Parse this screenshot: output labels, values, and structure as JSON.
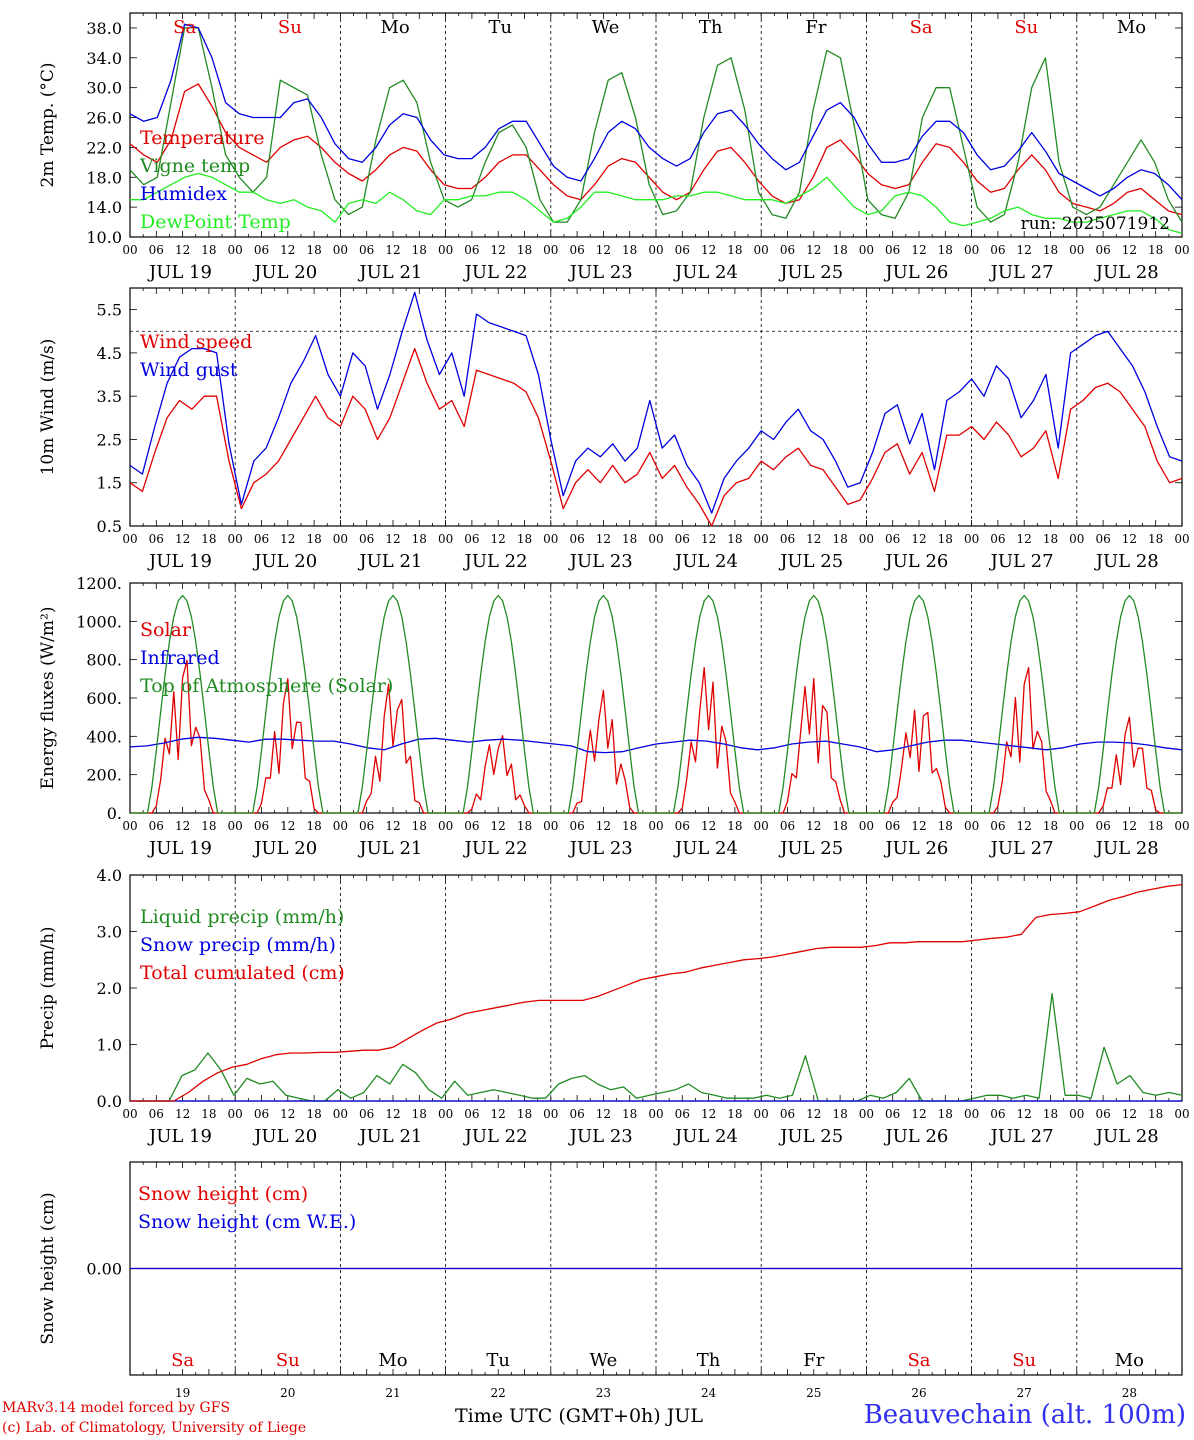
{
  "colors": {
    "red": "#e00000",
    "blue": "#0000e0",
    "green": "#228b22",
    "lime": "#22ee22",
    "black": "#000000",
    "grid": "#000000"
  },
  "x_axis": {
    "hour_labels": [
      "00",
      "06",
      "12",
      "18"
    ],
    "end_hour_label": "00",
    "date_labels": [
      "JUL 19",
      "JUL 20",
      "JUL 21",
      "JUL 22",
      "JUL 23",
      "JUL 24",
      "JUL 25",
      "JUL 26",
      "JUL 27",
      "JUL 28"
    ],
    "day_names": [
      "Sa",
      "Su",
      "Mo",
      "Tu",
      "We",
      "Th",
      "Fr",
      "Sa",
      "Su",
      "Mo"
    ],
    "weekend_flags": [
      true,
      true,
      false,
      false,
      false,
      false,
      false,
      true,
      true,
      false
    ],
    "day_numbers": [
      "19",
      "20",
      "21",
      "22",
      "23",
      "24",
      "25",
      "26",
      "27",
      "28"
    ],
    "title": "Time UTC (GMT+0h) JUL"
  },
  "footer": {
    "credit_line1": "MARv3.14 model forced by GFS",
    "credit_line2": "(c) Lab. of Climatology, University of Liege",
    "station": "Beauvechain (alt. 100m)"
  },
  "chart_data": [
    {
      "type": "line",
      "ylabel": "2m Temp. (°C)",
      "ylim": [
        10,
        40
      ],
      "yticks": [
        "10.0",
        "14.0",
        "18.0",
        "22.0",
        "26.0",
        "30.0",
        "34.0",
        "38.0"
      ],
      "annotation": "run: 2025071912",
      "x": "hours since JUL 19 00 UTC, 3-hourly, 0-240",
      "series": [
        {
          "name": "Temperature",
          "color": "red",
          "values": [
            22.5,
            21,
            20,
            23,
            29.5,
            30.5,
            27.5,
            24,
            22,
            21,
            20,
            22,
            23,
            23.5,
            22,
            20,
            18.5,
            17.5,
            19,
            21,
            22,
            21.5,
            19,
            17,
            16.5,
            16.5,
            18,
            20,
            21,
            21,
            19,
            17,
            15.5,
            15,
            17,
            19.5,
            20.5,
            20,
            18,
            16,
            15,
            16,
            19,
            21.5,
            22,
            20,
            17.5,
            15.5,
            14.5,
            15,
            18,
            22,
            23,
            21,
            18.5,
            17,
            16.5,
            17,
            20,
            22.5,
            22,
            20,
            17.5,
            16,
            16.5,
            19,
            21,
            19,
            16,
            14.5,
            14,
            13.5,
            14.5,
            16,
            16.5,
            15,
            13.5,
            13
          ]
        },
        {
          "name": "Vigne temp",
          "color": "green",
          "values": [
            19,
            17,
            18,
            28,
            38,
            38,
            30,
            21,
            18,
            16,
            18,
            31,
            30,
            29,
            21,
            15,
            13,
            14,
            23,
            30,
            31,
            28,
            20,
            15,
            14,
            15,
            20,
            24,
            25,
            22,
            15,
            12,
            12,
            15,
            24,
            31,
            32,
            26,
            17,
            13,
            13.5,
            16,
            26,
            33,
            34,
            27,
            16,
            13,
            12.5,
            16,
            27,
            35,
            34,
            25,
            15,
            13,
            12.5,
            16,
            26,
            30,
            30,
            22,
            14,
            12,
            13,
            20,
            30,
            34,
            20,
            14,
            13,
            14,
            17,
            20,
            23,
            20,
            15,
            12
          ]
        },
        {
          "name": "Humidex",
          "color": "blue",
          "values": [
            26.5,
            25.5,
            26,
            31,
            38.5,
            38,
            34,
            28,
            26.5,
            26,
            26,
            26,
            28,
            28.5,
            26,
            22.5,
            20.5,
            20,
            22,
            25,
            26.5,
            26,
            23,
            21,
            20.5,
            20.5,
            22,
            24.5,
            25.5,
            25.5,
            22.5,
            19.5,
            18,
            17.5,
            20.5,
            24,
            25.5,
            24.5,
            22,
            20.5,
            19.5,
            20.5,
            24,
            26.5,
            27,
            25,
            22.5,
            20.5,
            19,
            20,
            23.5,
            27,
            28,
            26,
            22.5,
            20,
            20,
            20.5,
            23.5,
            25.5,
            25.5,
            24,
            21,
            19,
            19.5,
            21.5,
            24,
            21.5,
            18.5,
            17.5,
            16.5,
            15.5,
            16.5,
            18,
            19,
            18.5,
            17,
            15
          ]
        },
        {
          "name": "DewPoint Temp",
          "color": "lime",
          "values": [
            15,
            15,
            16,
            17,
            18,
            18.5,
            18,
            17,
            16,
            16,
            15,
            14.5,
            15,
            14,
            13.5,
            12,
            14.5,
            15,
            14.5,
            16,
            15,
            13.5,
            13,
            15,
            15,
            15.5,
            15.5,
            16,
            16,
            15,
            13.5,
            12,
            12.5,
            14,
            16,
            16,
            15.5,
            15,
            15,
            15,
            15.5,
            15.5,
            16,
            16,
            15.5,
            15,
            15,
            15,
            14.5,
            15.5,
            16.5,
            18,
            16,
            14,
            13,
            13.5,
            15.5,
            16,
            15.5,
            14,
            12,
            11.5,
            12,
            12.5,
            13.5,
            14,
            13,
            12.5,
            12.5,
            12,
            12,
            12.5,
            13,
            13.5,
            13.5,
            12.5,
            11,
            10.5
          ]
        }
      ]
    },
    {
      "type": "line",
      "ylabel": "10m Wind (m/s)",
      "ylim": [
        0.5,
        6
      ],
      "yticks": [
        "0.5",
        "1.5",
        "2.5",
        "3.5",
        "4.5",
        "5.5"
      ],
      "reference_line": 5.0,
      "series": [
        {
          "name": "Wind speed",
          "color": "red",
          "values": [
            1.5,
            1.3,
            2.2,
            3.0,
            3.4,
            3.2,
            3.5,
            3.5,
            2.0,
            0.9,
            1.5,
            1.7,
            2.0,
            2.5,
            3.0,
            3.5,
            3.0,
            2.8,
            3.5,
            3.2,
            2.5,
            3.0,
            3.8,
            4.6,
            3.8,
            3.2,
            3.4,
            2.8,
            4.1,
            4.0,
            3.9,
            3.8,
            3.6,
            3.0,
            2.0,
            0.9,
            1.5,
            1.8,
            1.5,
            1.9,
            1.5,
            1.7,
            2.2,
            1.6,
            1.9,
            1.4,
            1.0,
            0.5,
            1.2,
            1.5,
            1.6,
            2.0,
            1.8,
            2.1,
            2.3,
            1.9,
            1.8,
            1.4,
            1.0,
            1.1,
            1.6,
            2.2,
            2.4,
            1.7,
            2.2,
            1.3,
            2.6,
            2.6,
            2.8,
            2.5,
            2.9,
            2.6,
            2.1,
            2.3,
            2.7,
            1.6,
            3.2,
            3.4,
            3.7,
            3.8,
            3.6,
            3.2,
            2.8,
            2.0,
            1.5,
            1.6
          ]
        },
        {
          "name": "Wind gust",
          "color": "blue",
          "values": [
            1.9,
            1.7,
            2.8,
            3.8,
            4.4,
            4.6,
            4.6,
            4.5,
            2.4,
            1.0,
            2.0,
            2.3,
            3.0,
            3.8,
            4.3,
            4.9,
            4.0,
            3.5,
            4.5,
            4.2,
            3.2,
            4.0,
            5.0,
            5.9,
            4.8,
            4.0,
            4.5,
            3.5,
            5.4,
            5.2,
            5.1,
            5.0,
            4.9,
            4.0,
            2.5,
            1.2,
            2.0,
            2.3,
            2.1,
            2.4,
            2.0,
            2.3,
            3.4,
            2.3,
            2.6,
            1.9,
            1.5,
            0.8,
            1.6,
            2.0,
            2.3,
            2.7,
            2.5,
            2.9,
            3.2,
            2.7,
            2.5,
            2.0,
            1.4,
            1.5,
            2.2,
            3.1,
            3.3,
            2.4,
            3.1,
            1.8,
            3.4,
            3.6,
            3.9,
            3.5,
            4.2,
            3.9,
            3.0,
            3.4,
            4.0,
            2.3,
            4.5,
            4.7,
            4.9,
            5.0,
            4.6,
            4.2,
            3.6,
            2.8,
            2.1,
            2.0
          ]
        }
      ]
    },
    {
      "type": "line",
      "ylabel": "Energy fluxes (W/m²)",
      "ylim": [
        0,
        1200
      ],
      "yticks": [
        "0.",
        "200.",
        "400.",
        "600.",
        "800.",
        "1000.",
        "1200."
      ],
      "series": [
        {
          "name": "Solar",
          "color": "red",
          "daily_peaks": [
            830,
            700,
            700,
            420,
            640,
            790,
            780,
            620,
            790,
            500
          ]
        },
        {
          "name": "Infrared",
          "color": "blue",
          "values": [
            345,
            350,
            365,
            385,
            395,
            390,
            380,
            370,
            385,
            385,
            380,
            375,
            375,
            360,
            340,
            330,
            360,
            385,
            390,
            380,
            370,
            380,
            385,
            380,
            370,
            360,
            350,
            320,
            315,
            320,
            340,
            360,
            370,
            380,
            375,
            360,
            340,
            330,
            340,
            360,
            370,
            375,
            360,
            345,
            320,
            330,
            350,
            370,
            380,
            380,
            370,
            360,
            350,
            340,
            330,
            340,
            360,
            370,
            370,
            365,
            355,
            340,
            330
          ]
        },
        {
          "name": "Top of Atmosphere (Solar)",
          "color": "green",
          "daily_peak": 1135
        }
      ]
    },
    {
      "type": "line",
      "ylabel": "Precip (mm/h)",
      "ylim": [
        0,
        4
      ],
      "yticks": [
        "0.0",
        "1.0",
        "2.0",
        "3.0",
        "4.0"
      ],
      "series": [
        {
          "name": "Liquid precip (mm/h)",
          "color": "green",
          "values": [
            0,
            0,
            0,
            0,
            0.45,
            0.55,
            0.85,
            0.55,
            0.1,
            0.4,
            0.3,
            0.35,
            0.1,
            0.05,
            0,
            0,
            0.2,
            0.05,
            0.15,
            0.45,
            0.3,
            0.65,
            0.5,
            0.2,
            0.05,
            0.35,
            0.1,
            0.15,
            0.2,
            0.15,
            0.1,
            0.05,
            0.05,
            0.3,
            0.4,
            0.45,
            0.3,
            0.2,
            0.25,
            0.05,
            0.1,
            0.15,
            0.2,
            0.3,
            0.15,
            0.1,
            0.05,
            0.05,
            0.05,
            0.1,
            0.05,
            0.1,
            0.8,
            0,
            0,
            0,
            0,
            0.1,
            0.05,
            0.15,
            0.4,
            0,
            0,
            0,
            0,
            0.05,
            0.1,
            0.1,
            0.05,
            0.1,
            0.05,
            1.9,
            0.1,
            0.1,
            0.05,
            0.95,
            0.3,
            0.45,
            0.15,
            0.1,
            0.15,
            0.1
          ]
        },
        {
          "name": "Snow precip (mm/h)",
          "color": "blue",
          "values": [
            0
          ]
        },
        {
          "name": "Total cumulated (cm)",
          "color": "red",
          "values": [
            0,
            0,
            0,
            0,
            0.15,
            0.35,
            0.5,
            0.6,
            0.65,
            0.75,
            0.82,
            0.85,
            0.85,
            0.86,
            0.86,
            0.88,
            0.9,
            0.9,
            0.95,
            1.1,
            1.25,
            1.38,
            1.45,
            1.55,
            1.6,
            1.65,
            1.7,
            1.75,
            1.78,
            1.78,
            1.78,
            1.78,
            1.85,
            1.95,
            2.05,
            2.15,
            2.2,
            2.25,
            2.28,
            2.35,
            2.4,
            2.45,
            2.5,
            2.52,
            2.55,
            2.6,
            2.65,
            2.7,
            2.72,
            2.72,
            2.72,
            2.75,
            2.8,
            2.8,
            2.82,
            2.82,
            2.82,
            2.82,
            2.85,
            2.88,
            2.9,
            2.95,
            3.25,
            3.3,
            3.32,
            3.35,
            3.45,
            3.55,
            3.62,
            3.7,
            3.75,
            3.8,
            3.83
          ]
        }
      ]
    },
    {
      "type": "line",
      "ylabel": "Snow height (cm)",
      "ylim": [
        -1,
        1
      ],
      "yticks": [
        "0.00"
      ],
      "series": [
        {
          "name": "Snow height (cm)",
          "color": "red",
          "values": [
            0
          ]
        },
        {
          "name": "Snow height (cm W.E.)",
          "color": "blue",
          "values": [
            0
          ]
        }
      ]
    }
  ]
}
